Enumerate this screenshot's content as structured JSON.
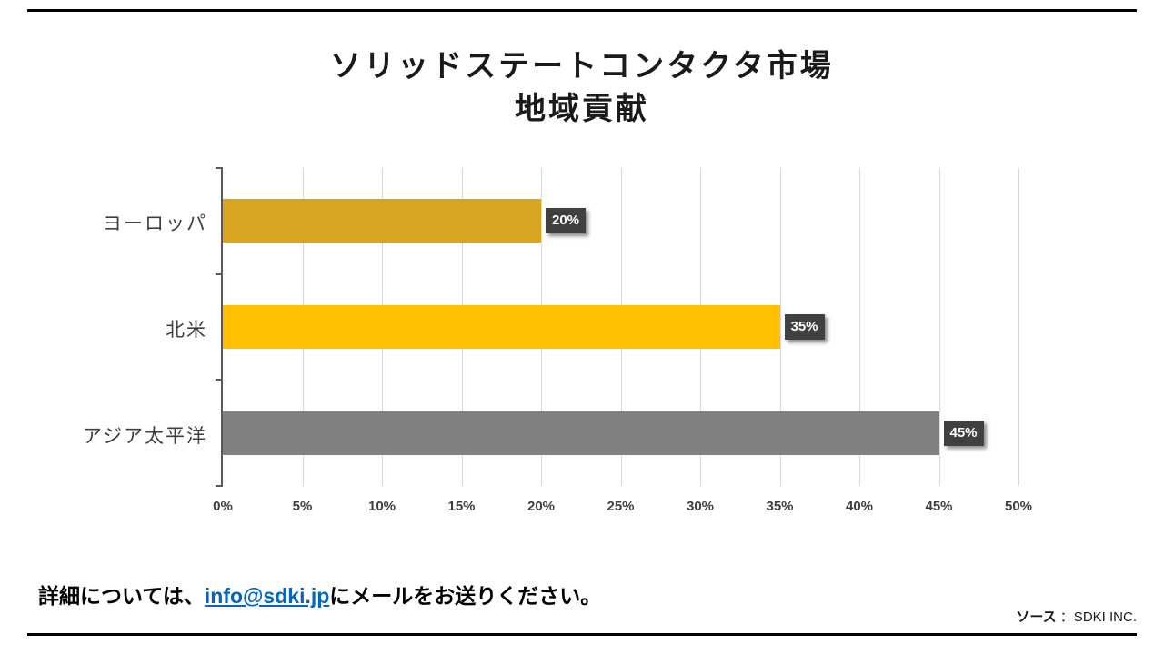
{
  "title": {
    "line1": "ソリッドステートコンタクタ市場",
    "line2": "地域貢献"
  },
  "chart_data": {
    "type": "bar",
    "orientation": "horizontal",
    "title": "ソリッドステートコンタクタ市場 地域貢献",
    "categories": [
      "ヨーロッパ",
      "北米",
      "アジア太平洋"
    ],
    "values": [
      20,
      35,
      45
    ],
    "data_labels": [
      "20%",
      "35%",
      "45%"
    ],
    "bar_colors": [
      "#D9A521",
      "#FFC000",
      "#808080"
    ],
    "x_ticks": [
      "0%",
      "5%",
      "10%",
      "15%",
      "20%",
      "25%",
      "30%",
      "35%",
      "40%",
      "45%",
      "50%"
    ],
    "xlim": [
      0,
      50
    ],
    "grid": true,
    "legend": "none",
    "value_label_box_color": "#404040",
    "value_label_text_color": "#FFFFFF"
  },
  "footer": {
    "prefix": "詳細については、",
    "email": "info@sdki.jp",
    "suffix": "にメールをお送りください。",
    "email_link_color": "#0563C1"
  },
  "source": {
    "label": "ソース",
    "value": " ：SDKI INC."
  }
}
